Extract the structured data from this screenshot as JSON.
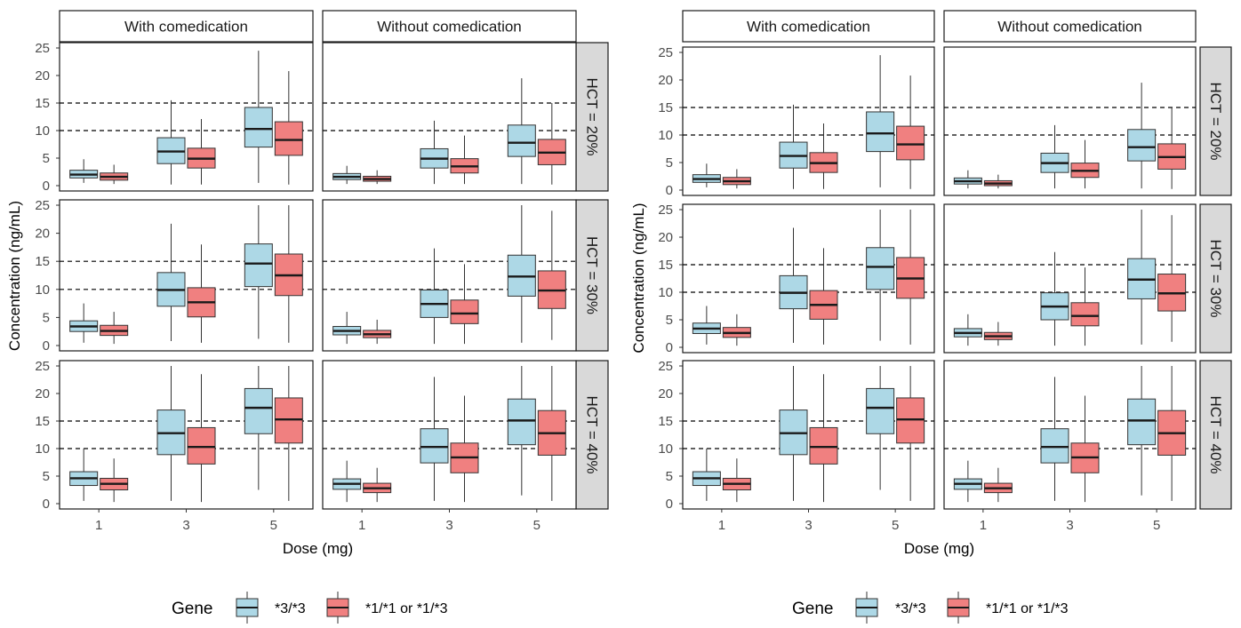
{
  "colors": {
    "series_a": "#add8e6",
    "series_b": "#f08080",
    "strip_bg": "#d9d9d9",
    "line": "#1a1a1a"
  },
  "chart_data": [
    {
      "type": "box",
      "xlabel": "Dose (mg)",
      "ylabel": "Concentration (ng/mL)",
      "legend_title": "Gene",
      "legend_position": "bottom",
      "series_names": [
        "*3/*3",
        "*1/*1 or *1/*3"
      ],
      "col_labels": [
        "With comedication",
        "Without comedication"
      ],
      "row_labels": [
        "HCT = 20%",
        "HCT = 30%",
        "HCT = 40%"
      ],
      "x_categories": [
        "1",
        "3",
        "5"
      ],
      "y_ticks": [
        "0",
        "5",
        "10",
        "15",
        "20",
        "25"
      ],
      "ylim": [
        0,
        25
      ],
      "reference_lines": [
        10,
        15
      ],
      "panels": [
        {
          "row": 0,
          "col": 0,
          "boxes": [
            {
              "dose": "1",
              "series": 0,
              "min": 0.5,
              "q1": 1.4,
              "median": 2.0,
              "q3": 2.8,
              "max": 4.8
            },
            {
              "dose": "1",
              "series": 1,
              "min": 0.3,
              "q1": 1.0,
              "median": 1.6,
              "q3": 2.3,
              "max": 3.8
            },
            {
              "dose": "3",
              "series": 0,
              "min": 0.2,
              "q1": 4.0,
              "median": 6.2,
              "q3": 8.7,
              "max": 15.5
            },
            {
              "dose": "3",
              "series": 1,
              "min": 0.2,
              "q1": 3.2,
              "median": 4.9,
              "q3": 6.8,
              "max": 12.1
            },
            {
              "dose": "5",
              "series": 0,
              "min": 0.5,
              "q1": 7.0,
              "median": 10.3,
              "q3": 14.2,
              "max": 24.5
            },
            {
              "dose": "5",
              "series": 1,
              "min": 0.2,
              "q1": 5.5,
              "median": 8.3,
              "q3": 11.6,
              "max": 20.8
            }
          ]
        },
        {
          "row": 0,
          "col": 1,
          "boxes": [
            {
              "dose": "1",
              "series": 0,
              "min": 0.3,
              "q1": 1.1,
              "median": 1.6,
              "q3": 2.2,
              "max": 3.6
            },
            {
              "dose": "1",
              "series": 1,
              "min": 0.3,
              "q1": 0.8,
              "median": 1.2,
              "q3": 1.7,
              "max": 2.8
            },
            {
              "dose": "3",
              "series": 0,
              "min": 0.3,
              "q1": 3.2,
              "median": 4.9,
              "q3": 6.7,
              "max": 11.8
            },
            {
              "dose": "3",
              "series": 1,
              "min": 0.3,
              "q1": 2.3,
              "median": 3.5,
              "q3": 4.9,
              "max": 9.1
            },
            {
              "dose": "5",
              "series": 0,
              "min": 0.3,
              "q1": 5.3,
              "median": 7.8,
              "q3": 11.0,
              "max": 19.5
            },
            {
              "dose": "5",
              "series": 1,
              "min": 0.2,
              "q1": 3.8,
              "median": 6.0,
              "q3": 8.4,
              "max": 15.0
            }
          ]
        },
        {
          "row": 1,
          "col": 0,
          "boxes": [
            {
              "dose": "1",
              "series": 0,
              "min": 0.5,
              "q1": 2.5,
              "median": 3.4,
              "q3": 4.4,
              "max": 7.5
            },
            {
              "dose": "1",
              "series": 1,
              "min": 0.3,
              "q1": 1.8,
              "median": 2.6,
              "q3": 3.6,
              "max": 6.0
            },
            {
              "dose": "3",
              "series": 0,
              "min": 0.8,
              "q1": 7.0,
              "median": 9.9,
              "q3": 13.0,
              "max": 21.7
            },
            {
              "dose": "3",
              "series": 1,
              "min": 0.5,
              "q1": 5.1,
              "median": 7.7,
              "q3": 10.3,
              "max": 18.0
            },
            {
              "dose": "5",
              "series": 0,
              "min": 1.2,
              "q1": 10.5,
              "median": 14.6,
              "q3": 18.1,
              "max": 25
            },
            {
              "dose": "5",
              "series": 1,
              "min": 0.5,
              "q1": 8.9,
              "median": 12.5,
              "q3": 16.3,
              "max": 25
            }
          ]
        },
        {
          "row": 1,
          "col": 1,
          "boxes": [
            {
              "dose": "1",
              "series": 0,
              "min": 0.3,
              "q1": 1.9,
              "median": 2.6,
              "q3": 3.4,
              "max": 6.0
            },
            {
              "dose": "1",
              "series": 1,
              "min": 0.3,
              "q1": 1.4,
              "median": 2.0,
              "q3": 2.7,
              "max": 4.6
            },
            {
              "dose": "3",
              "series": 0,
              "min": 0.3,
              "q1": 5.0,
              "median": 7.4,
              "q3": 9.9,
              "max": 17.3
            },
            {
              "dose": "3",
              "series": 1,
              "min": 0.3,
              "q1": 3.9,
              "median": 5.7,
              "q3": 8.1,
              "max": 14.5
            },
            {
              "dose": "5",
              "series": 0,
              "min": 0.5,
              "q1": 8.8,
              "median": 12.3,
              "q3": 16.1,
              "max": 25
            },
            {
              "dose": "5",
              "series": 1,
              "min": 1.0,
              "q1": 6.6,
              "median": 9.8,
              "q3": 13.3,
              "max": 24.0
            }
          ]
        },
        {
          "row": 2,
          "col": 0,
          "boxes": [
            {
              "dose": "1",
              "series": 0,
              "min": 0.5,
              "q1": 3.3,
              "median": 4.6,
              "q3": 5.8,
              "max": 10.0
            },
            {
              "dose": "1",
              "series": 1,
              "min": 0.3,
              "q1": 2.5,
              "median": 3.6,
              "q3": 4.6,
              "max": 8.2
            },
            {
              "dose": "3",
              "series": 0,
              "min": 0.5,
              "q1": 8.9,
              "median": 12.8,
              "q3": 17.0,
              "max": 25
            },
            {
              "dose": "3",
              "series": 1,
              "min": 0.3,
              "q1": 7.2,
              "median": 10.3,
              "q3": 13.8,
              "max": 23.5
            },
            {
              "dose": "5",
              "series": 0,
              "min": 2.5,
              "q1": 12.7,
              "median": 17.4,
              "q3": 20.9,
              "max": 25
            },
            {
              "dose": "5",
              "series": 1,
              "min": 0.5,
              "q1": 11.0,
              "median": 15.3,
              "q3": 19.2,
              "max": 25
            }
          ]
        },
        {
          "row": 2,
          "col": 1,
          "boxes": [
            {
              "dose": "1",
              "series": 0,
              "min": 0.3,
              "q1": 2.6,
              "median": 3.6,
              "q3": 4.5,
              "max": 7.8
            },
            {
              "dose": "1",
              "series": 1,
              "min": 0.3,
              "q1": 2.0,
              "median": 2.8,
              "q3": 3.7,
              "max": 6.5
            },
            {
              "dose": "3",
              "series": 0,
              "min": 0.5,
              "q1": 7.4,
              "median": 10.3,
              "q3": 13.6,
              "max": 23.0
            },
            {
              "dose": "3",
              "series": 1,
              "min": 0.3,
              "q1": 5.6,
              "median": 8.4,
              "q3": 11.0,
              "max": 19.6
            },
            {
              "dose": "5",
              "series": 0,
              "min": 1.5,
              "q1": 10.7,
              "median": 15.1,
              "q3": 19.0,
              "max": 25
            },
            {
              "dose": "5",
              "series": 1,
              "min": 0.5,
              "q1": 8.8,
              "median": 12.8,
              "q3": 16.9,
              "max": 25
            }
          ]
        }
      ]
    },
    {
      "type": "box",
      "xlabel": "Dose (mg)",
      "ylabel": "Concentration (ng/mL)",
      "legend_title": "Gene",
      "legend_position": "bottom",
      "series_names": [
        "*3/*3",
        "*1/*1 or *1/*3"
      ],
      "col_labels": [
        "With comedication",
        "Without comedication"
      ],
      "row_labels": [
        "HCT = 20%",
        "HCT = 30%",
        "HCT = 40%"
      ],
      "x_categories": [
        "1",
        "3",
        "5"
      ],
      "y_ticks": [
        "0",
        "5",
        "10",
        "15",
        "20",
        "25"
      ],
      "ylim": [
        0,
        25
      ],
      "reference_lines": [
        10,
        15
      ],
      "panels": [
        {
          "row": 0,
          "col": 0,
          "boxes": [
            {
              "dose": "1",
              "series": 0,
              "min": 0.5,
              "q1": 1.4,
              "median": 2.0,
              "q3": 2.8,
              "max": 4.8
            },
            {
              "dose": "1",
              "series": 1,
              "min": 0.3,
              "q1": 1.0,
              "median": 1.6,
              "q3": 2.3,
              "max": 3.8
            },
            {
              "dose": "3",
              "series": 0,
              "min": 0.2,
              "q1": 4.0,
              "median": 6.2,
              "q3": 8.7,
              "max": 15.5
            },
            {
              "dose": "3",
              "series": 1,
              "min": 0.2,
              "q1": 3.2,
              "median": 4.9,
              "q3": 6.8,
              "max": 12.1
            },
            {
              "dose": "5",
              "series": 0,
              "min": 0.5,
              "q1": 7.0,
              "median": 10.3,
              "q3": 14.2,
              "max": 24.5
            },
            {
              "dose": "5",
              "series": 1,
              "min": 0.2,
              "q1": 5.5,
              "median": 8.3,
              "q3": 11.6,
              "max": 20.8
            }
          ]
        },
        {
          "row": 0,
          "col": 1,
          "boxes": [
            {
              "dose": "1",
              "series": 0,
              "min": 0.3,
              "q1": 1.1,
              "median": 1.6,
              "q3": 2.2,
              "max": 3.6
            },
            {
              "dose": "1",
              "series": 1,
              "min": 0.3,
              "q1": 0.8,
              "median": 1.2,
              "q3": 1.7,
              "max": 2.8
            },
            {
              "dose": "3",
              "series": 0,
              "min": 0.3,
              "q1": 3.2,
              "median": 4.9,
              "q3": 6.7,
              "max": 11.8
            },
            {
              "dose": "3",
              "series": 1,
              "min": 0.3,
              "q1": 2.3,
              "median": 3.5,
              "q3": 4.9,
              "max": 9.1
            },
            {
              "dose": "5",
              "series": 0,
              "min": 0.3,
              "q1": 5.3,
              "median": 7.8,
              "q3": 11.0,
              "max": 19.5
            },
            {
              "dose": "5",
              "series": 1,
              "min": 0.2,
              "q1": 3.8,
              "median": 6.0,
              "q3": 8.4,
              "max": 15.0
            }
          ]
        },
        {
          "row": 1,
          "col": 0,
          "boxes": [
            {
              "dose": "1",
              "series": 0,
              "min": 0.5,
              "q1": 2.5,
              "median": 3.4,
              "q3": 4.4,
              "max": 7.5
            },
            {
              "dose": "1",
              "series": 1,
              "min": 0.3,
              "q1": 1.8,
              "median": 2.6,
              "q3": 3.6,
              "max": 6.0
            },
            {
              "dose": "3",
              "series": 0,
              "min": 0.8,
              "q1": 7.0,
              "median": 9.9,
              "q3": 13.0,
              "max": 21.7
            },
            {
              "dose": "3",
              "series": 1,
              "min": 0.5,
              "q1": 5.1,
              "median": 7.7,
              "q3": 10.3,
              "max": 18.0
            },
            {
              "dose": "5",
              "series": 0,
              "min": 1.2,
              "q1": 10.5,
              "median": 14.6,
              "q3": 18.1,
              "max": 25
            },
            {
              "dose": "5",
              "series": 1,
              "min": 0.5,
              "q1": 8.9,
              "median": 12.5,
              "q3": 16.3,
              "max": 25
            }
          ]
        },
        {
          "row": 1,
          "col": 1,
          "boxes": [
            {
              "dose": "1",
              "series": 0,
              "min": 0.3,
              "q1": 1.9,
              "median": 2.6,
              "q3": 3.4,
              "max": 6.0
            },
            {
              "dose": "1",
              "series": 1,
              "min": 0.3,
              "q1": 1.4,
              "median": 2.0,
              "q3": 2.7,
              "max": 4.6
            },
            {
              "dose": "3",
              "series": 0,
              "min": 0.3,
              "q1": 5.0,
              "median": 7.4,
              "q3": 9.9,
              "max": 17.3
            },
            {
              "dose": "3",
              "series": 1,
              "min": 0.3,
              "q1": 3.9,
              "median": 5.7,
              "q3": 8.1,
              "max": 14.5
            },
            {
              "dose": "5",
              "series": 0,
              "min": 0.5,
              "q1": 8.8,
              "median": 12.3,
              "q3": 16.1,
              "max": 25
            },
            {
              "dose": "5",
              "series": 1,
              "min": 1.0,
              "q1": 6.6,
              "median": 9.8,
              "q3": 13.3,
              "max": 24.0
            }
          ]
        },
        {
          "row": 2,
          "col": 0,
          "boxes": [
            {
              "dose": "1",
              "series": 0,
              "min": 0.5,
              "q1": 3.3,
              "median": 4.6,
              "q3": 5.8,
              "max": 10.0
            },
            {
              "dose": "1",
              "series": 1,
              "min": 0.3,
              "q1": 2.5,
              "median": 3.6,
              "q3": 4.6,
              "max": 8.2
            },
            {
              "dose": "3",
              "series": 0,
              "min": 0.5,
              "q1": 8.9,
              "median": 12.8,
              "q3": 17.0,
              "max": 25
            },
            {
              "dose": "3",
              "series": 1,
              "min": 0.3,
              "q1": 7.2,
              "median": 10.3,
              "q3": 13.8,
              "max": 23.5
            },
            {
              "dose": "5",
              "series": 0,
              "min": 2.5,
              "q1": 12.7,
              "median": 17.4,
              "q3": 20.9,
              "max": 25
            },
            {
              "dose": "5",
              "series": 1,
              "min": 0.5,
              "q1": 11.0,
              "median": 15.3,
              "q3": 19.2,
              "max": 25
            }
          ]
        },
        {
          "row": 2,
          "col": 1,
          "boxes": [
            {
              "dose": "1",
              "series": 0,
              "min": 0.3,
              "q1": 2.6,
              "median": 3.6,
              "q3": 4.5,
              "max": 7.8
            },
            {
              "dose": "1",
              "series": 1,
              "min": 0.3,
              "q1": 2.0,
              "median": 2.8,
              "q3": 3.7,
              "max": 6.5
            },
            {
              "dose": "3",
              "series": 0,
              "min": 0.5,
              "q1": 7.4,
              "median": 10.3,
              "q3": 13.6,
              "max": 23.0
            },
            {
              "dose": "3",
              "series": 1,
              "min": 0.3,
              "q1": 5.6,
              "median": 8.4,
              "q3": 11.0,
              "max": 19.6
            },
            {
              "dose": "5",
              "series": 0,
              "min": 1.5,
              "q1": 10.7,
              "median": 15.1,
              "q3": 19.0,
              "max": 25
            },
            {
              "dose": "5",
              "series": 1,
              "min": 0.5,
              "q1": 8.8,
              "median": 12.8,
              "q3": 16.9,
              "max": 25
            }
          ]
        }
      ]
    }
  ]
}
